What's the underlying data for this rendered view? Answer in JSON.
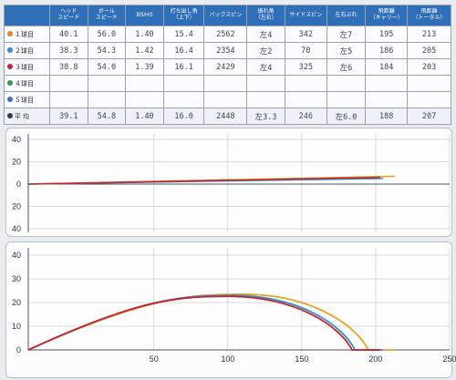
{
  "table": {
    "headers": [
      {
        "lines": [
          "",
          ""
        ]
      },
      {
        "lines": [
          "ヘッド",
          "スピード"
        ]
      },
      {
        "lines": [
          "ボール",
          "スピード"
        ]
      },
      {
        "lines": [
          "BS/HS"
        ]
      },
      {
        "lines": [
          "打ち出し角",
          "（上下）"
        ]
      },
      {
        "lines": [
          "バックスピン"
        ]
      },
      {
        "lines": [
          "振れ角",
          "（左右）"
        ]
      },
      {
        "lines": [
          "サイドスピン"
        ]
      },
      {
        "lines": [
          "左右ぶれ"
        ]
      },
      {
        "lines": [
          "飛距離",
          "（キャリー）"
        ]
      },
      {
        "lines": [
          "飛距離",
          "（トータル）"
        ]
      }
    ],
    "rows": [
      {
        "label": "１球目",
        "dot_color": "#e8821e",
        "cells": [
          "40.1",
          "56.0",
          "1.40",
          "15.4",
          "2562",
          "左4",
          "342",
          "左7",
          "195",
          "213"
        ]
      },
      {
        "label": "２球目",
        "dot_color": "#2f8fd6",
        "cells": [
          "38.3",
          "54.3",
          "1.42",
          "16.4",
          "2354",
          "左2",
          "70",
          "左5",
          "186",
          "205"
        ]
      },
      {
        "label": "３球目",
        "dot_color": "#c6262e",
        "cells": [
          "38.8",
          "54.0",
          "1.39",
          "16.1",
          "2429",
          "左4",
          "325",
          "左6",
          "184",
          "203"
        ]
      },
      {
        "label": "４球目",
        "dot_color": "#2f9a4a",
        "cells": [
          "",
          "",
          "",
          "",
          "",
          "",
          "",
          "",
          "",
          ""
        ]
      },
      {
        "label": "５球目",
        "dot_color": "#3a6fd0",
        "cells": [
          "",
          "",
          "",
          "",
          "",
          "",
          "",
          "",
          "",
          ""
        ]
      },
      {
        "label": "平 均",
        "dot_color": "#2a3d5a",
        "cells": [
          "39.1",
          "54.8",
          "1.40",
          "16.0",
          "2448",
          "左3.3",
          "246",
          "左6.0",
          "188",
          "207"
        ]
      }
    ]
  },
  "chart_data": [
    {
      "type": "line",
      "view": "top",
      "y_ticks": [
        "40",
        "20",
        "0",
        "20",
        "40"
      ],
      "ylim": [
        -40,
        40
      ],
      "xlim": [
        -35,
        250
      ],
      "grid": true,
      "series": [
        {
          "color": "#e8a21e",
          "x": [
            -35,
            213
          ],
          "y": [
            0,
            7
          ]
        },
        {
          "color": "#2f8fd6",
          "x": [
            -35,
            205
          ],
          "y": [
            0,
            5
          ]
        },
        {
          "color": "#c6262e",
          "x": [
            -35,
            203
          ],
          "y": [
            0,
            6
          ]
        }
      ]
    },
    {
      "type": "line",
      "view": "side",
      "x_ticks": [
        "50",
        "100",
        "150",
        "200",
        "250"
      ],
      "x_tick_values": [
        50,
        100,
        150,
        200,
        250
      ],
      "y_ticks": [
        "40",
        "30",
        "20",
        "10",
        "0"
      ],
      "y_tick_values": [
        40,
        30,
        20,
        10,
        0
      ],
      "xlim": [
        -35,
        250
      ],
      "ylim": [
        0,
        40
      ],
      "grid": true,
      "series": [
        {
          "color": "#e8a21e",
          "x": [
            -35,
            110,
            195,
            213
          ],
          "y": [
            0,
            23.5,
            0,
            0
          ]
        },
        {
          "color": "#2f8fd6",
          "x": [
            -35,
            103,
            186,
            205
          ],
          "y": [
            0,
            23.0,
            0,
            0
          ]
        },
        {
          "color": "#c6262e",
          "x": [
            -35,
            100,
            184,
            203
          ],
          "y": [
            0,
            22.6,
            0,
            0
          ]
        }
      ]
    }
  ]
}
